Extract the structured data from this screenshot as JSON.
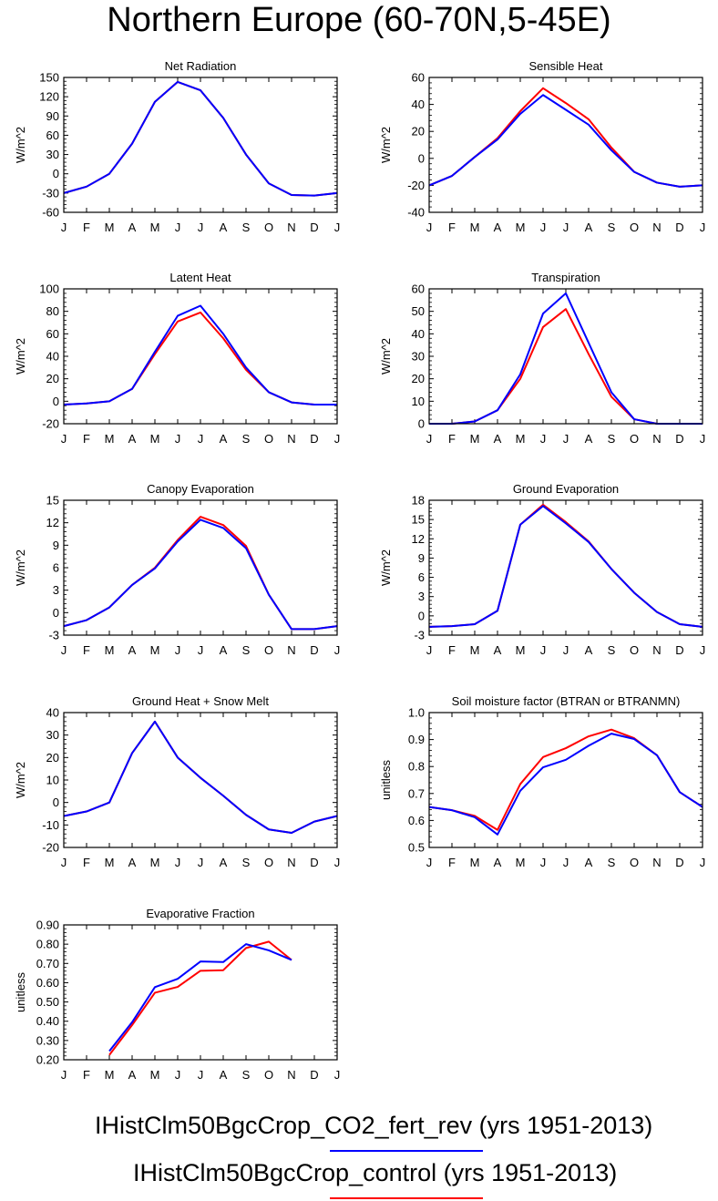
{
  "title": "Northern Europe (60-70N,5-45E)",
  "colors": {
    "CO2_fert_rev": "#0000ff",
    "control": "#ff0000",
    "axis": "#000000"
  },
  "legend": [
    {
      "label": "IHistClm50BgcCrop_CO2_fert_rev (yrs 1951-2013)",
      "color": "#0000ff"
    },
    {
      "label": "IHistClm50BgcCrop_control (yrs 1951-2013)",
      "color": "#ff0000"
    }
  ],
  "chart_data": [
    {
      "type": "line",
      "title": "Net Radiation",
      "ylabel": "W/m^2",
      "categories": [
        "J",
        "F",
        "M",
        "A",
        "M",
        "J",
        "J",
        "A",
        "S",
        "O",
        "N",
        "D",
        "J"
      ],
      "ylim": [
        -60,
        150
      ],
      "yticks": [
        -60,
        -30,
        0,
        30,
        60,
        90,
        120,
        150
      ],
      "series": [
        {
          "color": "#ff0000",
          "values": [
            -30,
            -20,
            0,
            47,
            112,
            143,
            130,
            87,
            30,
            -15,
            -33,
            -34,
            -30
          ]
        },
        {
          "color": "#0000ff",
          "values": [
            -30,
            -20,
            0,
            47,
            112,
            143,
            130,
            87,
            30,
            -15,
            -33,
            -34,
            -30
          ]
        }
      ]
    },
    {
      "type": "line",
      "title": "Sensible Heat",
      "ylabel": "W/m^2",
      "categories": [
        "J",
        "F",
        "M",
        "A",
        "M",
        "J",
        "J",
        "A",
        "S",
        "O",
        "N",
        "D",
        "J"
      ],
      "ylim": [
        -40,
        60
      ],
      "yticks": [
        -40,
        -20,
        0,
        20,
        40,
        60
      ],
      "series": [
        {
          "color": "#ff0000",
          "values": [
            -20,
            -13,
            1,
            15,
            35,
            52,
            41,
            29,
            8,
            -10,
            -18,
            -21,
            -20
          ]
        },
        {
          "color": "#0000ff",
          "values": [
            -20,
            -13,
            1,
            14,
            33,
            47,
            36,
            25,
            6,
            -10,
            -18,
            -21,
            -20
          ]
        }
      ]
    },
    {
      "type": "line",
      "title": "Latent Heat",
      "ylabel": "W/m^2",
      "categories": [
        "J",
        "F",
        "M",
        "A",
        "M",
        "J",
        "J",
        "A",
        "S",
        "O",
        "N",
        "D",
        "J"
      ],
      "ylim": [
        -20,
        100
      ],
      "yticks": [
        -20,
        0,
        20,
        40,
        60,
        80,
        100
      ],
      "series": [
        {
          "color": "#ff0000",
          "values": [
            -3,
            -2,
            0,
            11,
            42,
            71,
            79,
            56,
            28,
            8,
            -1,
            -3,
            -3
          ]
        },
        {
          "color": "#0000ff",
          "values": [
            -3,
            -2,
            0,
            11,
            44,
            76,
            85,
            60,
            30,
            8,
            -1,
            -3,
            -3
          ]
        }
      ]
    },
    {
      "type": "line",
      "title": "Transpiration",
      "ylabel": "W/m^2",
      "categories": [
        "J",
        "F",
        "M",
        "A",
        "M",
        "J",
        "J",
        "A",
        "S",
        "O",
        "N",
        "D",
        "J"
      ],
      "ylim": [
        0,
        60
      ],
      "yticks": [
        0,
        10,
        20,
        30,
        40,
        50,
        60
      ],
      "series": [
        {
          "color": "#ff0000",
          "values": [
            0,
            0,
            1,
            6,
            20,
            43,
            51,
            31,
            12,
            2,
            0,
            0,
            0
          ]
        },
        {
          "color": "#0000ff",
          "values": [
            0,
            0,
            1,
            6,
            22,
            49,
            58,
            36,
            14,
            2,
            0,
            0,
            0
          ]
        }
      ]
    },
    {
      "type": "line",
      "title": "Canopy Evaporation",
      "ylabel": "W/m^2",
      "categories": [
        "J",
        "F",
        "M",
        "A",
        "M",
        "J",
        "J",
        "A",
        "S",
        "O",
        "N",
        "D",
        "J"
      ],
      "ylim": [
        -3,
        15
      ],
      "yticks": [
        -3,
        0,
        3,
        6,
        9,
        12,
        15
      ],
      "series": [
        {
          "color": "#ff0000",
          "values": [
            -1.8,
            -1,
            0.7,
            3.7,
            6,
            9.7,
            12.8,
            11.7,
            8.9,
            2.4,
            -2.2,
            -2.2,
            -1.8
          ]
        },
        {
          "color": "#0000ff",
          "values": [
            -1.8,
            -1,
            0.7,
            3.7,
            5.9,
            9.5,
            12.4,
            11.3,
            8.6,
            2.4,
            -2.2,
            -2.2,
            -1.8
          ]
        }
      ]
    },
    {
      "type": "line",
      "title": "Ground Evaporation",
      "ylabel": "W/m^2",
      "categories": [
        "J",
        "F",
        "M",
        "A",
        "M",
        "J",
        "J",
        "A",
        "S",
        "O",
        "N",
        "D",
        "J"
      ],
      "ylim": [
        -3,
        18
      ],
      "yticks": [
        -3,
        0,
        3,
        6,
        9,
        12,
        15,
        18
      ],
      "series": [
        {
          "color": "#ff0000",
          "values": [
            -1.7,
            -1.6,
            -1.3,
            0.8,
            14.2,
            17.3,
            14.6,
            11.6,
            7.3,
            3.6,
            0.6,
            -1.3,
            -1.7
          ]
        },
        {
          "color": "#0000ff",
          "values": [
            -1.7,
            -1.6,
            -1.3,
            0.8,
            14.2,
            17.1,
            14.4,
            11.5,
            7.3,
            3.6,
            0.6,
            -1.3,
            -1.7
          ]
        }
      ]
    },
    {
      "type": "line",
      "title": "Ground Heat + Snow Melt",
      "ylabel": "W/m^2",
      "categories": [
        "J",
        "F",
        "M",
        "A",
        "M",
        "J",
        "J",
        "A",
        "S",
        "O",
        "N",
        "D",
        "J"
      ],
      "ylim": [
        -20,
        40
      ],
      "yticks": [
        -20,
        -10,
        0,
        10,
        20,
        30,
        40
      ],
      "series": [
        {
          "color": "#ff0000",
          "values": [
            -6,
            -4,
            0,
            22,
            36,
            20,
            11,
            3,
            -5.5,
            -12,
            -13.5,
            -8.5,
            -6
          ]
        },
        {
          "color": "#0000ff",
          "values": [
            -6,
            -4,
            0,
            22,
            36,
            20,
            11,
            3,
            -5.5,
            -12,
            -13.5,
            -8.5,
            -6
          ]
        }
      ]
    },
    {
      "type": "line",
      "title": "Soil moisture factor (BTRAN or BTRANMN)",
      "ylabel": "unitless",
      "categories": [
        "J",
        "F",
        "M",
        "A",
        "M",
        "J",
        "J",
        "A",
        "S",
        "O",
        "N",
        "D",
        "J"
      ],
      "ylim": [
        0.5,
        1.0
      ],
      "yticks": [
        "0.5",
        "0.6",
        "0.7",
        "0.8",
        "0.9",
        "1.0"
      ],
      "series": [
        {
          "color": "#ff0000",
          "values": [
            0.65,
            0.638,
            0.617,
            0.565,
            0.735,
            0.835,
            0.868,
            0.912,
            0.937,
            0.905,
            0.842,
            0.705,
            0.65
          ]
        },
        {
          "color": "#0000ff",
          "values": [
            0.65,
            0.638,
            0.612,
            0.548,
            0.71,
            0.797,
            0.825,
            0.877,
            0.922,
            0.902,
            0.842,
            0.705,
            0.65
          ]
        }
      ]
    },
    {
      "type": "line",
      "title": "Evaporative Fraction",
      "ylabel": "unitless",
      "categories": [
        "J",
        "F",
        "M",
        "A",
        "M",
        "J",
        "J",
        "A",
        "S",
        "O",
        "N",
        "D",
        "J"
      ],
      "ylim": [
        0.2,
        0.9
      ],
      "yticks": [
        "0.20",
        "0.30",
        "0.40",
        "0.50",
        "0.60",
        "0.70",
        "0.80",
        "0.90"
      ],
      "series": [
        {
          "color": "#ff0000",
          "values": [
            null,
            null,
            0.225,
            0.38,
            0.548,
            0.578,
            0.662,
            0.665,
            0.78,
            0.813,
            0.718,
            null,
            null
          ]
        },
        {
          "color": "#0000ff",
          "values": [
            null,
            null,
            0.245,
            0.395,
            0.577,
            0.62,
            0.71,
            0.707,
            0.8,
            0.768,
            0.718,
            null,
            null
          ]
        }
      ]
    }
  ]
}
